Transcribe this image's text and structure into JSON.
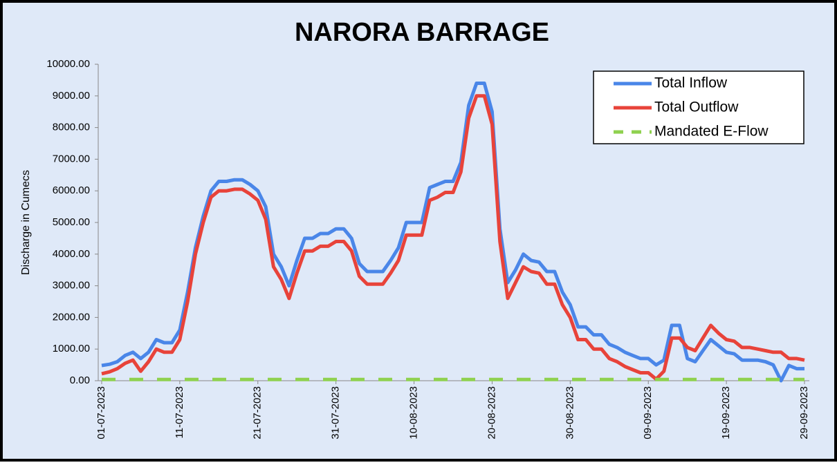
{
  "chart_data": {
    "type": "line",
    "title": "NARORA BARRAGE",
    "ylabel": "Discharge in Cumecs",
    "categories": [
      "01-07-2023",
      null,
      null,
      null,
      null,
      null,
      null,
      null,
      null,
      null,
      "11-07-2023",
      null,
      null,
      null,
      null,
      null,
      null,
      null,
      null,
      null,
      "21-07-2023",
      null,
      null,
      null,
      null,
      null,
      null,
      null,
      null,
      null,
      "31-07-2023",
      null,
      null,
      null,
      null,
      null,
      null,
      null,
      null,
      null,
      "10-08-2023",
      null,
      null,
      null,
      null,
      null,
      null,
      null,
      null,
      null,
      "20-08-2023",
      null,
      null,
      null,
      null,
      null,
      null,
      null,
      null,
      null,
      "30-08-2023",
      null,
      null,
      null,
      null,
      null,
      null,
      null,
      null,
      null,
      "09-09-2023",
      null,
      null,
      null,
      null,
      null,
      null,
      null,
      null,
      null,
      "19-09-2023",
      null,
      null,
      null,
      null,
      null,
      null,
      null,
      null,
      null,
      "29-09-2023"
    ],
    "series": [
      {
        "name": "Total Inflow",
        "color": "#4a86e8",
        "values": [
          480,
          520,
          600,
          800,
          900,
          700,
          900,
          1300,
          1200,
          1200,
          1600,
          2800,
          4200,
          5200,
          6000,
          6300,
          6300,
          6350,
          6350,
          6200,
          6000,
          5500,
          4000,
          3600,
          3000,
          3800,
          4500,
          4500,
          4650,
          4650,
          4800,
          4800,
          4500,
          3700,
          3450,
          3450,
          3450,
          3800,
          4200,
          5000,
          5000,
          5000,
          6100,
          6200,
          6300,
          6300,
          6900,
          8700,
          9400,
          9400,
          8500,
          4800,
          3100,
          3500,
          4000,
          3800,
          3750,
          3450,
          3450,
          2800,
          2400,
          1700,
          1700,
          1450,
          1450,
          1150,
          1050,
          900,
          800,
          700,
          700,
          500,
          650,
          1750,
          1750,
          700,
          600,
          950,
          1300,
          1100,
          900,
          850,
          650,
          650,
          650,
          600,
          500,
          0,
          480,
          380,
          380
        ]
      },
      {
        "name": "Total Outflow",
        "color": "#e8433a",
        "values": [
          220,
          280,
          380,
          550,
          650,
          300,
          600,
          1000,
          900,
          900,
          1300,
          2500,
          4000,
          5000,
          5800,
          6000,
          6000,
          6050,
          6050,
          5900,
          5700,
          5100,
          3600,
          3200,
          2600,
          3400,
          4100,
          4100,
          4250,
          4250,
          4400,
          4400,
          4100,
          3300,
          3050,
          3050,
          3050,
          3400,
          3800,
          4600,
          4600,
          4600,
          5700,
          5800,
          5950,
          5950,
          6600,
          8300,
          9000,
          9000,
          8100,
          4400,
          2600,
          3100,
          3600,
          3450,
          3400,
          3050,
          3050,
          2400,
          2000,
          1300,
          1300,
          1000,
          1000,
          700,
          600,
          450,
          350,
          250,
          250,
          50,
          300,
          1350,
          1350,
          1050,
          950,
          1350,
          1750,
          1500,
          1300,
          1250,
          1050,
          1050,
          1000,
          950,
          900,
          900,
          700,
          700,
          650
        ]
      },
      {
        "name": "Mandated E-Flow",
        "color": "#8fd14f",
        "dashed": true,
        "values": [
          40,
          40,
          40,
          40,
          40,
          40,
          40,
          40,
          40,
          40,
          40,
          40,
          40,
          40,
          40,
          40,
          40,
          40,
          40,
          40,
          40,
          40,
          40,
          40,
          40,
          40,
          40,
          40,
          40,
          40,
          40,
          40,
          40,
          40,
          40,
          40,
          40,
          40,
          40,
          40,
          40,
          40,
          40,
          40,
          40,
          40,
          40,
          40,
          40,
          40,
          40,
          40,
          40,
          40,
          40,
          40,
          40,
          40,
          40,
          40,
          40,
          40,
          40,
          40,
          40,
          40,
          40,
          40,
          40,
          40,
          40,
          40,
          40,
          40,
          40,
          40,
          40,
          40,
          40,
          40,
          40,
          40,
          40,
          40,
          40,
          40,
          40,
          40,
          40,
          40,
          40
        ]
      }
    ],
    "ylim": [
      0,
      10000
    ],
    "yticks": [
      {
        "value": 0,
        "label": "0.00"
      },
      {
        "value": 1000,
        "label": "1000.00"
      },
      {
        "value": 2000,
        "label": "2000.00"
      },
      {
        "value": 3000,
        "label": "3000.00"
      },
      {
        "value": 4000,
        "label": "4000.00"
      },
      {
        "value": 5000,
        "label": "5000.00"
      },
      {
        "value": 6000,
        "label": "6000.00"
      },
      {
        "value": 7000,
        "label": "7000.00"
      },
      {
        "value": 8000,
        "label": "8000.00"
      },
      {
        "value": 9000,
        "label": "9000.00"
      },
      {
        "value": 10000,
        "label": "10000.00"
      }
    ],
    "legend": "upper right"
  }
}
